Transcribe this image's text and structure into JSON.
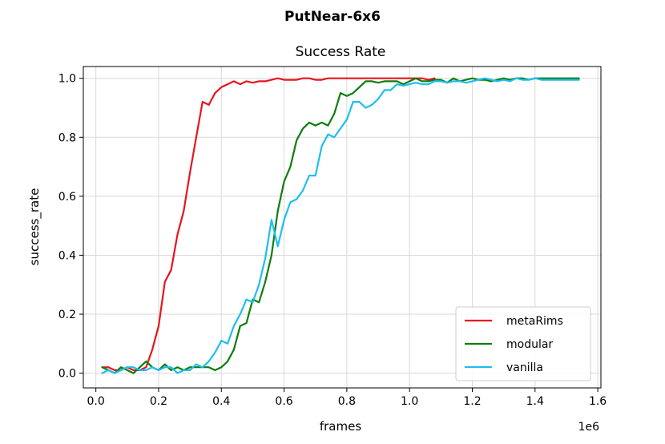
{
  "chart_data": {
    "type": "line",
    "suptitle": "PutNear-6x6",
    "title": "Success Rate",
    "xlabel": "frames",
    "ylabel": "success_rate",
    "x_offset_label": "1e6",
    "xlim": [
      -0.04,
      1.61
    ],
    "ylim": [
      -0.05,
      1.04
    ],
    "xticks": [
      0.0,
      0.2,
      0.4,
      0.6,
      0.8,
      1.0,
      1.2,
      1.4,
      1.6
    ],
    "xtick_labels": [
      "0.0",
      "0.2",
      "0.4",
      "0.6",
      "0.8",
      "1.0",
      "1.2",
      "1.4",
      "1.6"
    ],
    "yticks": [
      0.0,
      0.2,
      0.4,
      0.6,
      0.8,
      1.0
    ],
    "ytick_labels": [
      "0.0",
      "0.2",
      "0.4",
      "0.6",
      "0.8",
      "1.0"
    ],
    "grid": true,
    "legend_position": "lower-right",
    "series": [
      {
        "name": "metaRims",
        "color": "#e8141c",
        "x": [
          0.02,
          0.04,
          0.06,
          0.08,
          0.1,
          0.12,
          0.14,
          0.16,
          0.18,
          0.2,
          0.22,
          0.24,
          0.26,
          0.28,
          0.3,
          0.32,
          0.34,
          0.36,
          0.38,
          0.4,
          0.42,
          0.44,
          0.46,
          0.48,
          0.5,
          0.52,
          0.54,
          0.56,
          0.58,
          0.6,
          0.62,
          0.64,
          0.66,
          0.68,
          0.7,
          0.72,
          0.74,
          0.76,
          0.78,
          0.8,
          0.82,
          0.84,
          0.86,
          0.88,
          0.9,
          0.92,
          0.94,
          0.96,
          0.98,
          1.0,
          1.02,
          1.04,
          1.06,
          1.08
        ],
        "y": [
          0.02,
          0.02,
          0.01,
          0.01,
          0.02,
          0.01,
          0.01,
          0.02,
          0.08,
          0.16,
          0.31,
          0.35,
          0.47,
          0.55,
          0.68,
          0.8,
          0.92,
          0.91,
          0.95,
          0.97,
          0.98,
          0.99,
          0.98,
          0.99,
          0.985,
          0.99,
          0.99,
          0.995,
          1.0,
          0.995,
          0.995,
          0.995,
          1.0,
          1.0,
          0.995,
          0.995,
          1.0,
          1.0,
          1.0,
          1.0,
          1.0,
          1.0,
          1.0,
          1.0,
          1.0,
          1.0,
          1.0,
          1.0,
          1.0,
          1.0,
          1.0,
          1.0,
          0.995,
          1.0
        ]
      },
      {
        "name": "modular",
        "color": "#0d7d0d",
        "x": [
          0.02,
          0.04,
          0.06,
          0.08,
          0.1,
          0.12,
          0.14,
          0.16,
          0.18,
          0.2,
          0.22,
          0.24,
          0.26,
          0.28,
          0.3,
          0.32,
          0.34,
          0.36,
          0.38,
          0.4,
          0.42,
          0.44,
          0.46,
          0.48,
          0.5,
          0.52,
          0.54,
          0.56,
          0.58,
          0.6,
          0.62,
          0.64,
          0.66,
          0.68,
          0.7,
          0.72,
          0.74,
          0.76,
          0.78,
          0.8,
          0.82,
          0.84,
          0.86,
          0.88,
          0.9,
          0.92,
          0.94,
          0.96,
          0.98,
          1.0,
          1.02,
          1.04,
          1.06,
          1.08,
          1.1,
          1.12,
          1.14,
          1.16,
          1.18,
          1.2,
          1.22,
          1.24,
          1.26,
          1.28,
          1.3,
          1.32,
          1.34,
          1.36,
          1.38,
          1.4,
          1.42,
          1.44,
          1.46,
          1.48,
          1.5,
          1.52,
          1.54
        ],
        "y": [
          0.02,
          0.01,
          0.0,
          0.02,
          0.01,
          0.0,
          0.02,
          0.04,
          0.02,
          0.01,
          0.03,
          0.01,
          0.02,
          0.01,
          0.02,
          0.02,
          0.02,
          0.02,
          0.01,
          0.02,
          0.04,
          0.08,
          0.16,
          0.17,
          0.25,
          0.24,
          0.31,
          0.4,
          0.55,
          0.65,
          0.7,
          0.79,
          0.83,
          0.85,
          0.84,
          0.85,
          0.84,
          0.88,
          0.95,
          0.94,
          0.95,
          0.97,
          0.99,
          0.99,
          0.985,
          0.99,
          0.99,
          0.99,
          0.98,
          0.99,
          1.0,
          0.99,
          0.99,
          0.995,
          0.995,
          0.985,
          1.0,
          0.99,
          0.995,
          1.0,
          0.995,
          0.995,
          0.99,
          0.995,
          1.0,
          0.995,
          1.0,
          1.0,
          0.995,
          1.0,
          1.0,
          1.0,
          1.0,
          1.0,
          1.0,
          1.0,
          1.0
        ]
      },
      {
        "name": "vanilla",
        "color": "#1ebef0",
        "x": [
          0.02,
          0.04,
          0.06,
          0.08,
          0.1,
          0.12,
          0.14,
          0.16,
          0.18,
          0.2,
          0.22,
          0.24,
          0.26,
          0.28,
          0.3,
          0.32,
          0.34,
          0.36,
          0.38,
          0.4,
          0.42,
          0.44,
          0.46,
          0.48,
          0.5,
          0.52,
          0.54,
          0.56,
          0.58,
          0.6,
          0.62,
          0.64,
          0.66,
          0.68,
          0.7,
          0.72,
          0.74,
          0.76,
          0.78,
          0.8,
          0.82,
          0.84,
          0.86,
          0.88,
          0.9,
          0.92,
          0.94,
          0.96,
          0.98,
          1.0,
          1.02,
          1.04,
          1.06,
          1.08,
          1.1,
          1.12,
          1.14,
          1.16,
          1.18,
          1.2,
          1.22,
          1.24,
          1.26,
          1.28,
          1.3,
          1.32,
          1.34,
          1.36,
          1.38,
          1.4,
          1.42,
          1.44,
          1.46,
          1.48,
          1.5,
          1.52,
          1.54
        ],
        "y": [
          0.0,
          0.01,
          0.0,
          0.01,
          0.02,
          0.02,
          0.01,
          0.01,
          0.02,
          0.01,
          0.02,
          0.02,
          0.0,
          0.01,
          0.01,
          0.03,
          0.02,
          0.04,
          0.07,
          0.11,
          0.1,
          0.16,
          0.2,
          0.25,
          0.24,
          0.3,
          0.39,
          0.52,
          0.43,
          0.52,
          0.58,
          0.59,
          0.62,
          0.67,
          0.67,
          0.77,
          0.81,
          0.8,
          0.83,
          0.86,
          0.92,
          0.92,
          0.9,
          0.91,
          0.93,
          0.96,
          0.96,
          0.98,
          0.975,
          0.98,
          0.985,
          0.98,
          0.98,
          0.99,
          0.99,
          0.985,
          0.99,
          0.99,
          0.985,
          0.99,
          0.995,
          1.0,
          0.995,
          0.99,
          0.995,
          0.99,
          1.0,
          0.995,
          0.995,
          1.0,
          0.995,
          0.995,
          0.995,
          0.995,
          0.995,
          0.995,
          0.995
        ]
      }
    ]
  }
}
